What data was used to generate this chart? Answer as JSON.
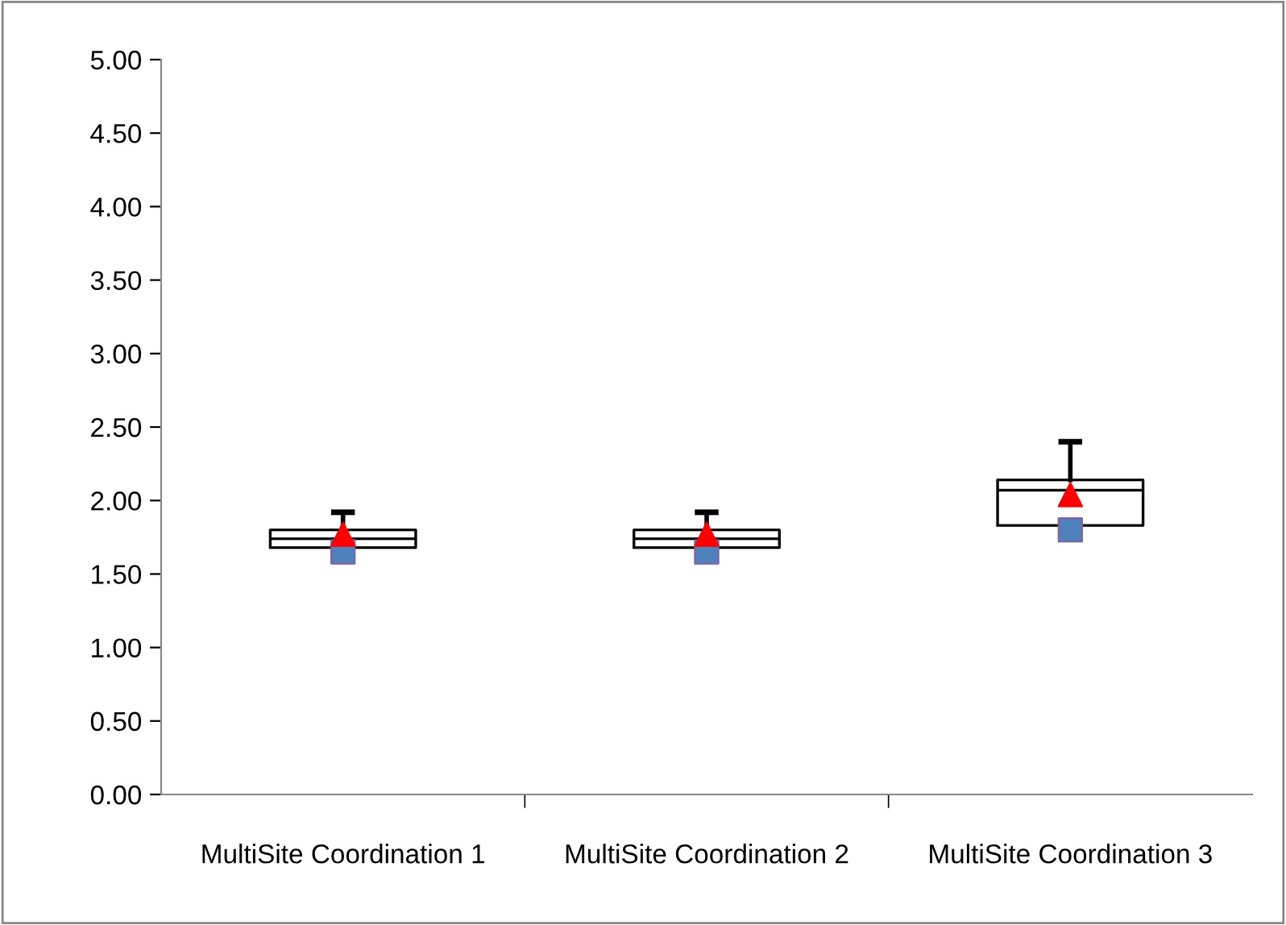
{
  "chart_data": {
    "type": "box",
    "categories": [
      "MultiSite Coordination 1",
      "MultiSite Coordination 2",
      "MultiSite Coordination 3"
    ],
    "color": "#000000",
    "boxes": [
      {
        "q1": 1.68,
        "median": 1.74,
        "q3": 1.8,
        "high": 1.92
      },
      {
        "q1": 1.68,
        "median": 1.74,
        "q3": 1.8,
        "high": 1.92
      },
      {
        "q1": 1.83,
        "median": 2.07,
        "q3": 2.14,
        "high": 2.4
      }
    ],
    "series": [
      {
        "type": "scatter",
        "color": "#4f81bd",
        "marker": "square",
        "x": [
          "MultiSite Coordination 1",
          "MultiSite Coordination 2",
          "MultiSite Coordination 3"
        ],
        "values": [
          1.65,
          1.65,
          1.8
        ]
      },
      {
        "type": "scatter",
        "color": "#ff0000",
        "marker": "triangle",
        "x": [
          "MultiSite Coordination 1",
          "MultiSite Coordination 2",
          "MultiSite Coordination 3"
        ],
        "values": [
          1.77,
          1.77,
          2.04
        ]
      }
    ],
    "ylim": [
      0,
      5
    ],
    "yticks": [
      {
        "value": 0,
        "label": "0.00"
      },
      {
        "value": 0.5,
        "label": "0.50"
      },
      {
        "value": 1,
        "label": "1.00"
      },
      {
        "value": 1.5,
        "label": "1.50"
      },
      {
        "value": 2,
        "label": "2.00"
      },
      {
        "value": 2.5,
        "label": "2.50"
      },
      {
        "value": 3,
        "label": "3.00"
      },
      {
        "value": 3.5,
        "label": "3.50"
      },
      {
        "value": 4,
        "label": "4.00"
      },
      {
        "value": 4.5,
        "label": "4.50"
      },
      {
        "value": 5,
        "label": "5.00"
      }
    ],
    "grid": false,
    "legend": false
  }
}
